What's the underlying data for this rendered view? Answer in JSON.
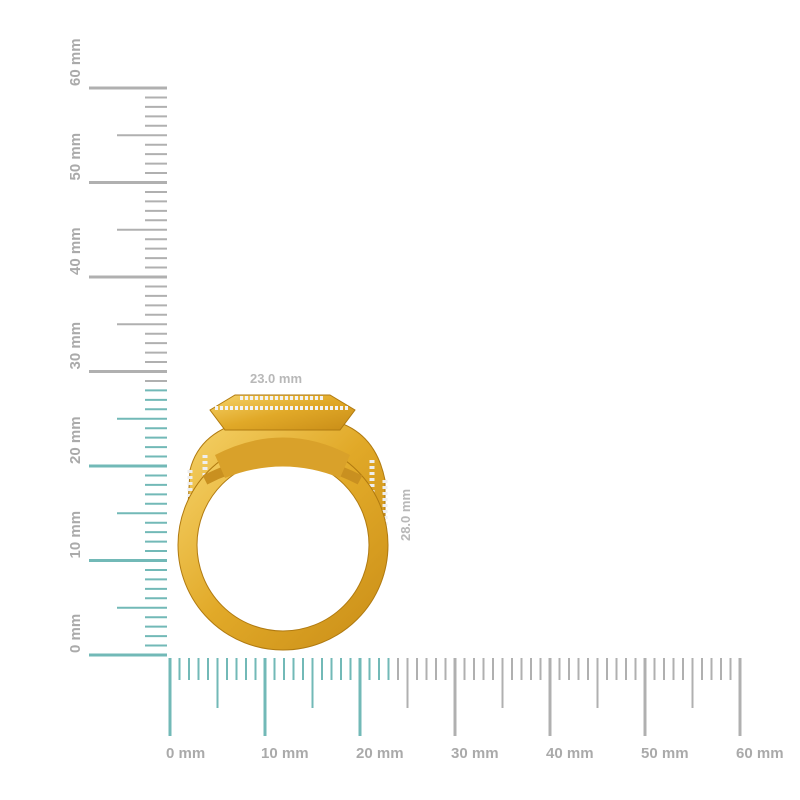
{
  "vertical_ruler": {
    "labels": [
      "0 mm",
      "10 mm",
      "20 mm",
      "30 mm",
      "40 mm",
      "50 mm",
      "60 mm"
    ]
  },
  "horizontal_ruler": {
    "labels": [
      "0 mm",
      "10 mm",
      "20 mm",
      "30 mm",
      "40 mm",
      "50 mm",
      "60 mm"
    ]
  },
  "dimensions": {
    "width": "23.0 mm",
    "height": "28.0 mm"
  }
}
